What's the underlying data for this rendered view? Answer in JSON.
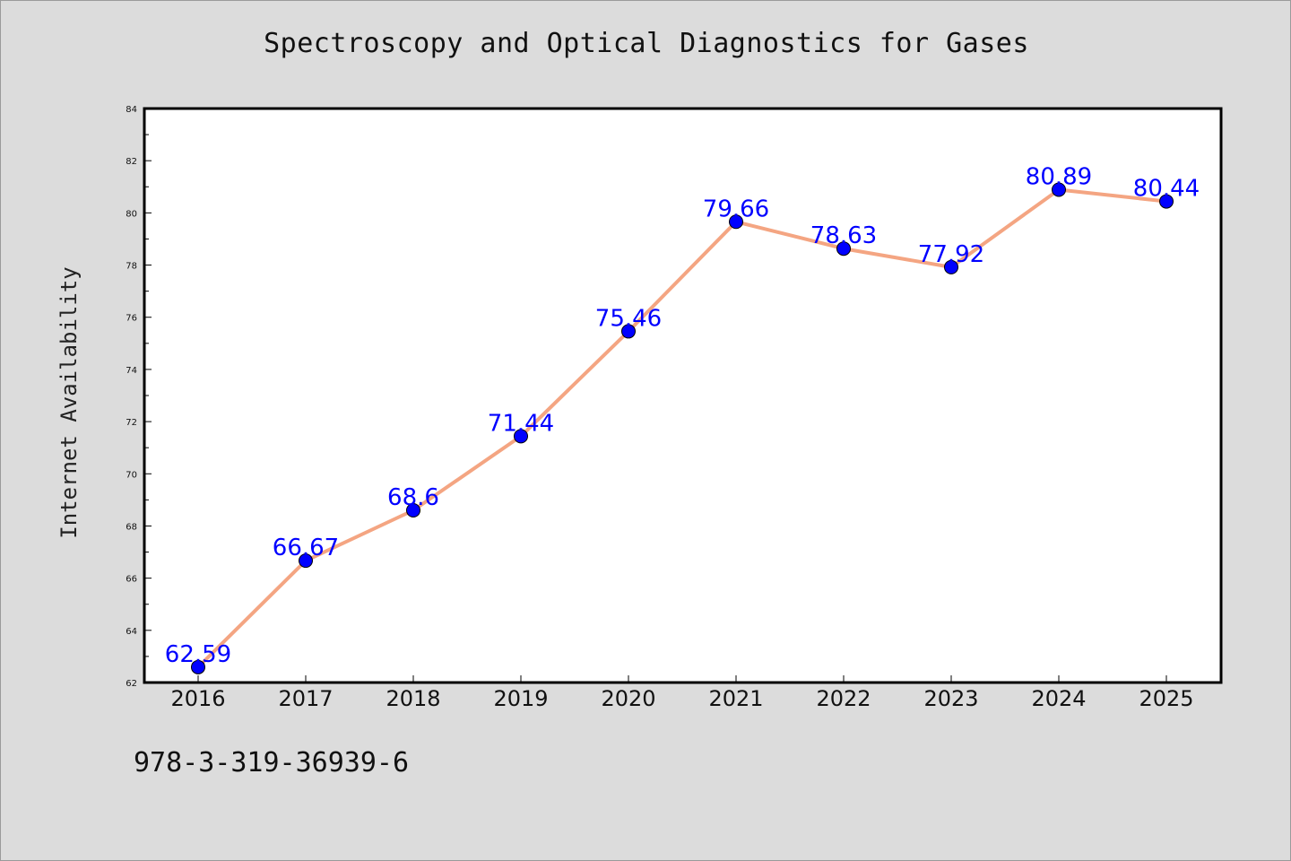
{
  "chart_data": {
    "type": "line",
    "title": "Spectroscopy and Optical Diagnostics for Gases",
    "xlabel": "",
    "ylabel": "Internet Availability",
    "categories": [
      "2016",
      "2017",
      "2018",
      "2019",
      "2020",
      "2021",
      "2022",
      "2023",
      "2024",
      "2025"
    ],
    "values": [
      62.59,
      66.67,
      68.6,
      71.44,
      75.46,
      79.66,
      78.63,
      77.92,
      80.89,
      80.44
    ],
    "data_labels": [
      "62.59",
      "66.67",
      "68.6",
      "71.44",
      "75.46",
      "79.66",
      "78.63",
      "77.92",
      "80.89",
      "80.44"
    ],
    "ylim": [
      62,
      84
    ],
    "yticks": [
      "62",
      "64",
      "66",
      "68",
      "70",
      "72",
      "74",
      "76",
      "78",
      "80",
      "82",
      "84"
    ],
    "grid": false,
    "line_color": "#f4a582",
    "marker_color": "#0000ff",
    "label_color": "#0000ff",
    "plot_background": "#ffffff",
    "page_background": "#dcdcdc"
  },
  "footnote": "978-3-319-36939-6"
}
